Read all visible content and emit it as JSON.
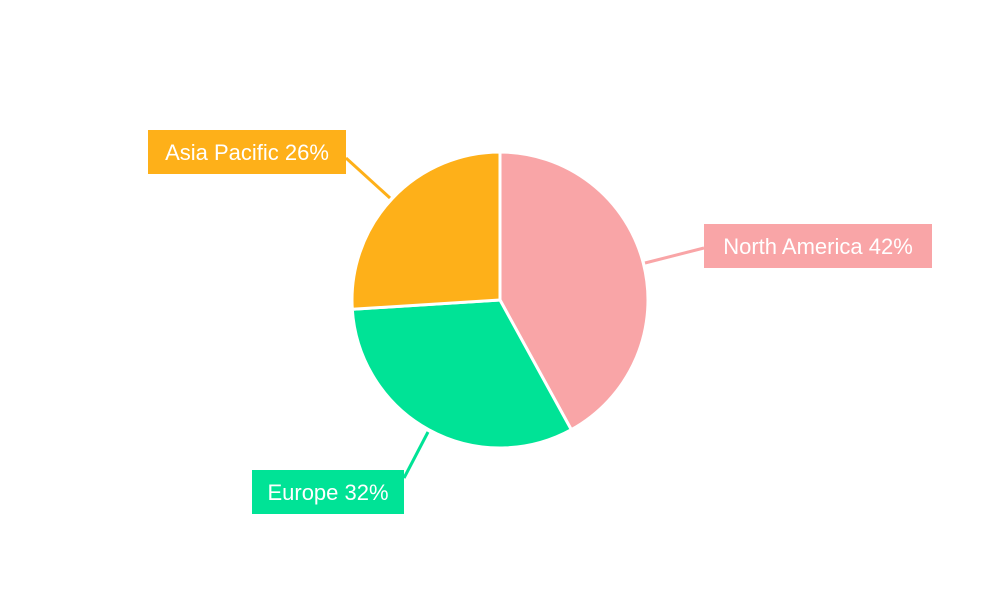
{
  "chart_data": {
    "type": "pie",
    "start_angle": "top, clockwise",
    "slices": [
      {
        "label": "North America",
        "value": 42,
        "display": "North America 42%",
        "color": "#F9A5A7"
      },
      {
        "label": "Europe",
        "value": 32,
        "display": "Europe 32%",
        "color": "#00E396"
      },
      {
        "label": "Asia Pacific",
        "value": 26,
        "display": "Asia Pacific 26%",
        "color": "#FEB019"
      }
    ],
    "legend": "none",
    "labels": "outside with leader lines"
  }
}
